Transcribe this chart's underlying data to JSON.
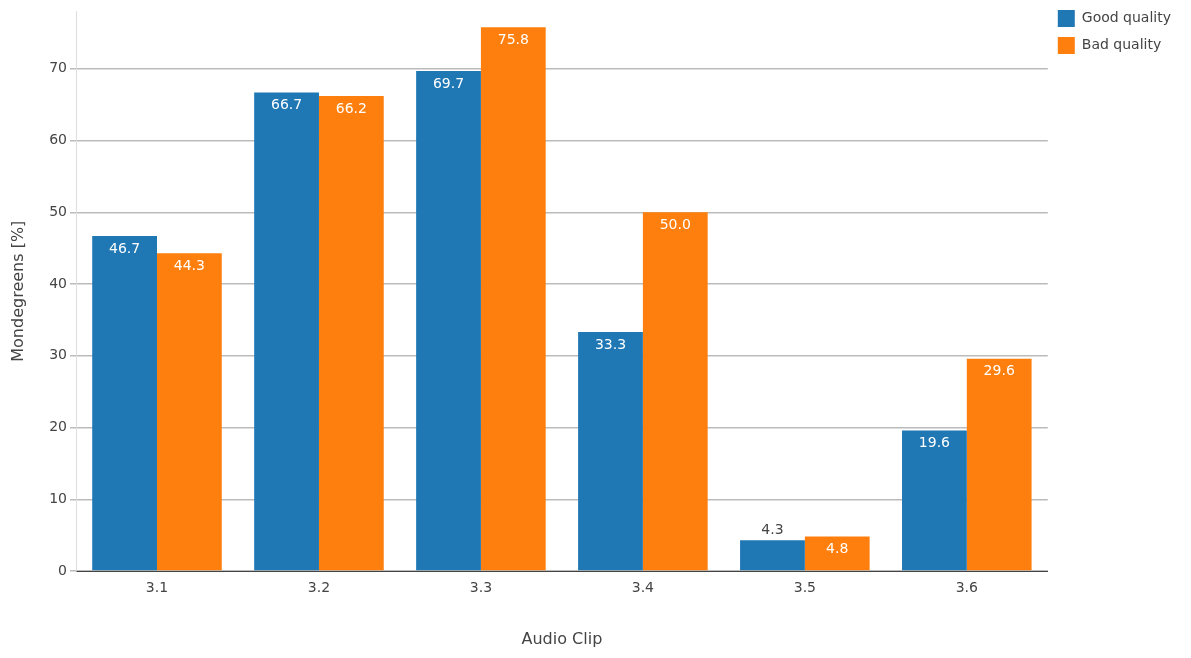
{
  "chart_data": {
    "type": "bar",
    "xlabel": "Audio Clip",
    "ylabel": "Mondegreens [%]",
    "categories": [
      "3.1",
      "3.2",
      "3.3",
      "3.4",
      "3.5",
      "3.6"
    ],
    "series": [
      {
        "name": "Good quality",
        "color": "#1f77b4",
        "values": [
          46.7,
          66.7,
          69.7,
          33.3,
          4.3,
          19.6
        ],
        "value_labels": [
          "46.7",
          "66.7",
          "69.7",
          "33.3",
          "4.3",
          "19.6"
        ]
      },
      {
        "name": "Bad quality",
        "color": "#ff7f0e",
        "values": [
          44.3,
          66.2,
          75.8,
          50.0,
          4.8,
          29.6
        ],
        "value_labels": [
          "44.3",
          "66.2",
          "75.8",
          "50.0",
          "4.8",
          "29.6"
        ]
      }
    ],
    "ylim": [
      0,
      78
    ],
    "yticks": [
      0,
      10,
      20,
      30,
      40,
      50,
      60,
      70
    ],
    "grid": "y",
    "legend": "top right"
  }
}
